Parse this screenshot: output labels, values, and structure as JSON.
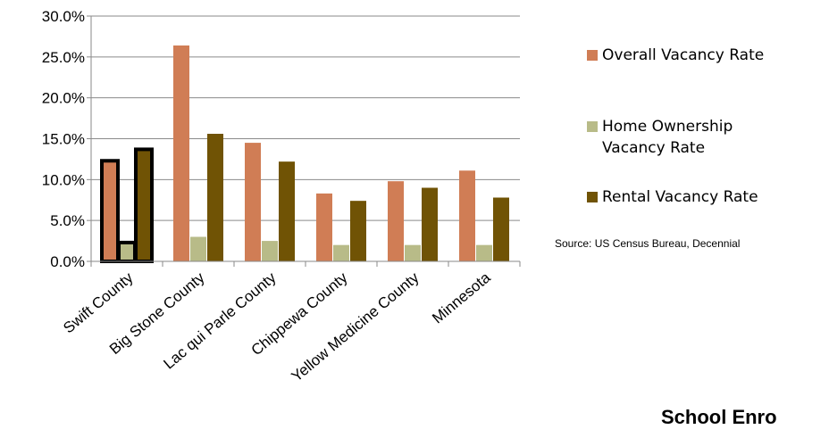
{
  "chart_data": {
    "type": "bar",
    "categories": [
      "Swift County",
      "Big Stone County",
      "Lac qui Parle County",
      "Chippewa County",
      "Yellow Medicine County",
      "Minnesota"
    ],
    "series": [
      {
        "name": "Overall Vacancy Rate",
        "color": "#D07D55",
        "values": [
          12.3,
          26.4,
          14.5,
          8.3,
          9.8,
          11.1
        ]
      },
      {
        "name": "Home Ownership Vacancy Rate",
        "color": "#B8BB88",
        "values": [
          2.3,
          3.0,
          2.5,
          2.0,
          2.0,
          2.0
        ]
      },
      {
        "name": "Rental Vacancy Rate",
        "color": "#705305",
        "values": [
          13.7,
          15.6,
          12.2,
          7.4,
          9.0,
          7.8
        ]
      }
    ],
    "ylim": [
      0,
      30
    ],
    "yticks": [
      "0.0%",
      "5.0%",
      "10.0%",
      "15.0%",
      "20.0%",
      "25.0%",
      "30.0%"
    ],
    "ytick_values": [
      0,
      5,
      10,
      15,
      20,
      25,
      30
    ],
    "highlighted_category": "Swift County",
    "grid": true,
    "legend_position": "right",
    "xlabel": "",
    "ylabel": ""
  },
  "legend": [
    {
      "label": "Overall Vacancy Rate",
      "color": "#D07D55"
    },
    {
      "label": "Home Ownership Vacancy Rate",
      "color": "#B8BB88"
    },
    {
      "label": "Rental Vacancy Rate",
      "color": "#705305"
    }
  ],
  "source_note": "Source: US Census Bureau, Decennial",
  "footer_title": "School Enro"
}
